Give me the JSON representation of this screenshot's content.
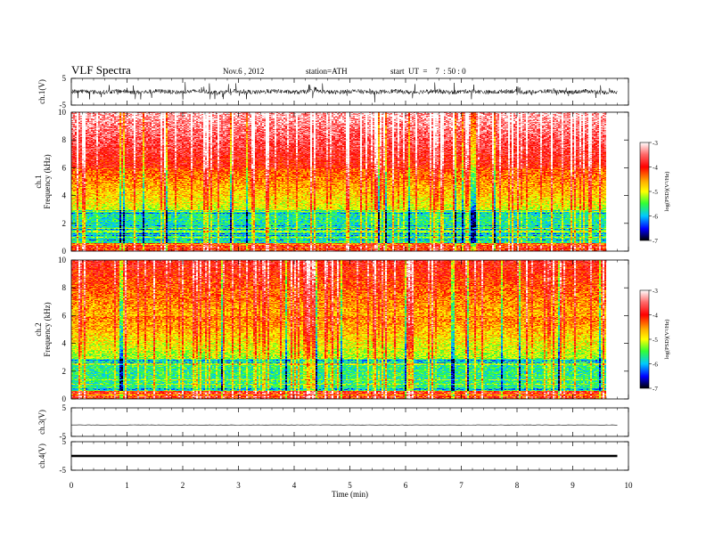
{
  "header": {
    "title": "VLF  Spectra",
    "date": "Nov.6  , 2012",
    "station": "station=ATH",
    "start": "start  UT  =    7  : 50 : 0"
  },
  "chart_data": [
    {
      "type": "line",
      "ylabel": "ch.1(V)",
      "ylim": [
        -5,
        5
      ],
      "yticks": [
        "5",
        "-5"
      ],
      "xlim": [
        0,
        10
      ],
      "data_end_min": 9.8,
      "trace": "noisy signal, approx. amplitude ±1 V with spikes"
    },
    {
      "type": "heatmap",
      "ylabel": "ch.1\nFrequency  (kHz)",
      "ylim": [
        0,
        10
      ],
      "yticks": [
        "0",
        "2",
        "4",
        "6",
        "8",
        "10"
      ],
      "xlim": [
        0,
        10
      ],
      "colorbar": {
        "label": "log(PSD)(V²/Hz)",
        "range": [
          -7,
          -3
        ],
        "ticks": [
          "-3",
          "-4",
          "-5",
          "-6",
          "-7"
        ]
      }
    },
    {
      "type": "heatmap",
      "ylabel": "ch.2\nFrequency  (kHz)",
      "ylim": [
        0,
        10
      ],
      "yticks": [
        "0",
        "2",
        "4",
        "6",
        "8",
        "10"
      ],
      "xlim": [
        0,
        10
      ],
      "colorbar": {
        "label": "log(PSD)(V²/Hz)",
        "range": [
          -7,
          -3
        ],
        "ticks": [
          "-3",
          "-4",
          "-5",
          "-6",
          "-7"
        ]
      }
    },
    {
      "type": "line",
      "ylabel": "ch.3(V)",
      "ylim": [
        -5,
        5
      ],
      "yticks": [
        "5",
        "-5"
      ],
      "xlim": [
        0,
        10
      ],
      "trace": "flat, approx. -1 V"
    },
    {
      "type": "line",
      "ylabel": "ch.4(V)",
      "ylim": [
        -5,
        5
      ],
      "yticks": [
        "5",
        "-5"
      ],
      "xlim": [
        0,
        10
      ],
      "trace": "flat thick band, approx. 0 V"
    }
  ],
  "xaxis": {
    "label": "Time  (min)",
    "ticks": [
      "0",
      "1",
      "2",
      "3",
      "4",
      "5",
      "6",
      "7",
      "8",
      "9",
      "10"
    ]
  }
}
